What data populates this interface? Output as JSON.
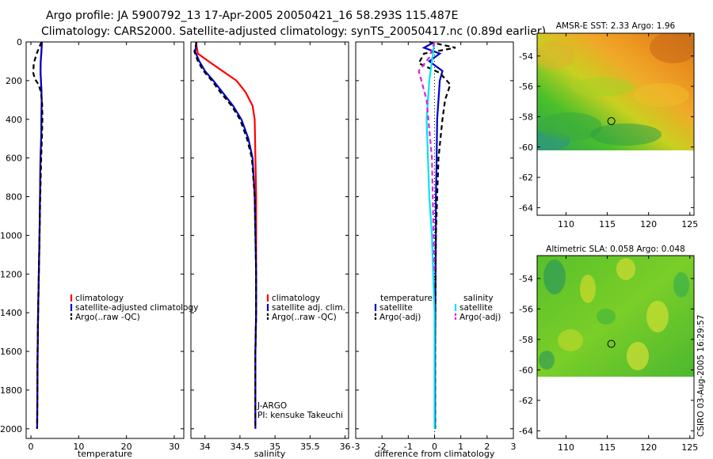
{
  "titles": {
    "line1": "Argo profile: JA 5900792_13 17-Apr-2005 20050421_16 58.293S 115.487E",
    "line2": "Climatology: CARS2000. Satellite-adjusted climatology: synTS_20050417.nc (0.89d earlier)"
  },
  "footer_stamp": "CSIRO 03-Aug-2005 16:29:57",
  "colors": {
    "climatology": "#ff0000",
    "satellite": "#0000cc",
    "argo": "#000000",
    "salinity_sat": "#00e5ee",
    "salinity_argo": "#e020e0"
  },
  "chart_data": [
    {
      "type": "line",
      "id": "temperature",
      "xlabel": "temperature",
      "ylabel": "",
      "xlim": [
        -1,
        32
      ],
      "ylim": [
        2050,
        0
      ],
      "xticks": [
        0,
        10,
        20,
        30
      ],
      "yticks": [
        0,
        200,
        400,
        600,
        800,
        1000,
        1200,
        1400,
        1600,
        1800,
        2000
      ],
      "series": [
        {
          "name": "climatology",
          "style": "solid",
          "color": "#ff0000",
          "x": [
            2.3,
            2.2,
            2.05,
            2.0,
            2.1,
            2.2,
            2.25,
            2.2,
            2.15,
            2.0,
            1.9,
            1.8,
            1.65,
            1.5,
            1.4,
            1.35,
            1.3
          ],
          "y": [
            0,
            50,
            100,
            150,
            200,
            250,
            300,
            400,
            500,
            600,
            800,
            1000,
            1200,
            1400,
            1600,
            1800,
            2000
          ]
        },
        {
          "name": "satellite-adjusted climatology",
          "style": "solid",
          "color": "#0000cc",
          "x": [
            2.3,
            2.2,
            2.05,
            2.0,
            2.1,
            2.2,
            2.25,
            2.2,
            2.15,
            2.0,
            1.9,
            1.8,
            1.65,
            1.5,
            1.4,
            1.35,
            1.3
          ],
          "y": [
            0,
            50,
            100,
            150,
            200,
            250,
            300,
            400,
            500,
            600,
            800,
            1000,
            1200,
            1400,
            1600,
            1800,
            2000
          ]
        },
        {
          "name": "Argo(..raw -QC)",
          "style": "dash",
          "color": "#000000",
          "x": [
            2.2,
            1.2,
            0.6,
            0.5,
            0.8,
            1.6,
            2.1,
            2.35,
            2.4,
            2.3,
            2.15,
            1.95,
            1.8,
            1.65,
            1.5,
            1.4,
            1.3
          ],
          "y": [
            0,
            60,
            110,
            160,
            190,
            220,
            260,
            320,
            400,
            500,
            600,
            800,
            1000,
            1200,
            1400,
            1600,
            2000
          ]
        }
      ],
      "legend": {
        "position": "center-right",
        "entries": [
          "climatology",
          "satellite-adjusted climatology",
          "Argo(..raw -QC)"
        ]
      }
    },
    {
      "type": "line",
      "id": "salinity",
      "xlabel": "salinity",
      "xlim": [
        33.8,
        36.05
      ],
      "ylim": [
        2050,
        0
      ],
      "xticks": [
        34,
        34.5,
        35,
        35.5,
        36
      ],
      "series": [
        {
          "name": "climatology",
          "style": "solid",
          "color": "#ff0000",
          "x": [
            33.87,
            33.9,
            34.05,
            34.25,
            34.45,
            34.58,
            34.68,
            34.71,
            34.72,
            34.73,
            34.73,
            34.73,
            34.73,
            34.72,
            34.72,
            34.72
          ],
          "y": [
            0,
            60,
            100,
            150,
            200,
            260,
            330,
            400,
            600,
            800,
            1000,
            1200,
            1400,
            1600,
            1800,
            2000
          ]
        },
        {
          "name": "satellite adj. clim.",
          "style": "solid",
          "color": "#0000cc",
          "x": [
            33.88,
            33.86,
            33.92,
            34.0,
            34.12,
            34.25,
            34.4,
            34.52,
            34.62,
            34.68,
            34.71,
            34.72,
            34.73,
            34.73,
            34.72,
            34.72,
            34.72
          ],
          "y": [
            0,
            50,
            100,
            150,
            200,
            260,
            330,
            400,
            500,
            600,
            800,
            1000,
            1200,
            1400,
            1600,
            1800,
            2000
          ]
        },
        {
          "name": "Argo(..raw -QC)",
          "style": "dash",
          "color": "#000000",
          "x": [
            33.88,
            33.85,
            33.9,
            33.98,
            34.1,
            34.22,
            34.38,
            34.5,
            34.6,
            34.67,
            34.71,
            34.72,
            34.73,
            34.73,
            34.72,
            34.72
          ],
          "y": [
            0,
            50,
            100,
            150,
            200,
            260,
            330,
            400,
            500,
            600,
            800,
            1000,
            1200,
            1400,
            1600,
            2000
          ]
        }
      ],
      "legend": {
        "position": "center-right",
        "entries": [
          "climatology",
          "satellite adj. clim.",
          "Argo(..raw -QC)"
        ]
      },
      "annotations": [
        "J-ARGO",
        "PI: kensuke Takeuchi"
      ]
    },
    {
      "type": "line",
      "id": "difference",
      "xlabel": "difference from climatology",
      "xlim": [
        -3,
        3
      ],
      "ylim": [
        2050,
        0
      ],
      "xticks": [
        -3,
        -2,
        -1,
        0,
        1,
        2,
        3
      ],
      "series": [
        {
          "name": "temperature satellite",
          "style": "solid",
          "color": "#0000cc",
          "x": [
            0.0,
            -0.4,
            0.2,
            -0.2,
            0.3,
            0.2,
            0.15,
            0.1,
            0.08,
            0.05,
            0.05,
            0.04,
            0.03,
            0.02,
            0.02,
            0.02
          ],
          "y": [
            0,
            30,
            60,
            100,
            150,
            200,
            300,
            400,
            600,
            800,
            1000,
            1200,
            1400,
            1600,
            1800,
            2000
          ]
        },
        {
          "name": "temperature Argo(-adj)",
          "style": "dash",
          "color": "#000000",
          "x": [
            -0.2,
            0.8,
            -0.4,
            -0.6,
            0.2,
            0.6,
            0.4,
            0.3,
            0.15,
            0.1,
            0.05,
            0.04,
            0.03,
            0.02,
            0.02
          ],
          "y": [
            0,
            30,
            60,
            110,
            160,
            220,
            300,
            400,
            600,
            800,
            1000,
            1200,
            1400,
            1600,
            2000
          ]
        },
        {
          "name": "salinity satellite",
          "style": "solid",
          "color": "#00e5ee",
          "x": [
            0.0,
            -0.1,
            -0.2,
            -0.3,
            -0.25,
            -0.2,
            -0.1,
            -0.05,
            0.0,
            0.0,
            0.0,
            0.0,
            0.0
          ],
          "y": [
            0,
            100,
            200,
            400,
            600,
            800,
            1000,
            1200,
            1400,
            1600,
            1800,
            1900,
            2000
          ]
        },
        {
          "name": "salinity Argo(-adj)",
          "style": "dash",
          "color": "#e020e0",
          "x": [
            0.0,
            -0.2,
            -0.6,
            -0.3,
            -0.1,
            -0.05,
            0.0
          ],
          "y": [
            0,
            80,
            150,
            300,
            600,
            900,
            1200
          ]
        }
      ],
      "legend": {
        "position": "center",
        "entries": [
          "temperature",
          "satellite",
          "Argo(-adj)",
          "salinity",
          "satellite",
          "Argo(-adj)"
        ]
      }
    },
    {
      "type": "heatmap",
      "id": "sst-map",
      "title": "AMSR-E SST: 2.33 Argo: 1.96",
      "xlim": [
        106.5,
        125.5
      ],
      "ylim": [
        -64.5,
        -52.5
      ],
      "xticks": [
        110,
        115,
        120,
        125
      ],
      "yticks": [
        -54,
        -56,
        -58,
        -60,
        -62,
        -64
      ],
      "data_extent_lat": [
        -60,
        -52.5
      ],
      "marker": {
        "lon": 115.487,
        "lat": -58.293
      }
    },
    {
      "type": "heatmap",
      "id": "sla-map",
      "title": "Altimetric SLA: 0.058 Argo: 0.048",
      "xlim": [
        106.5,
        125.5
      ],
      "ylim": [
        -64.5,
        -52.5
      ],
      "xticks": [
        110,
        115,
        120,
        125
      ],
      "yticks": [
        -54,
        -56,
        -58,
        -60,
        -62,
        -64
      ],
      "data_extent_lat": [
        -60,
        -52.5
      ],
      "marker": {
        "lon": 115.487,
        "lat": -58.293
      }
    }
  ]
}
